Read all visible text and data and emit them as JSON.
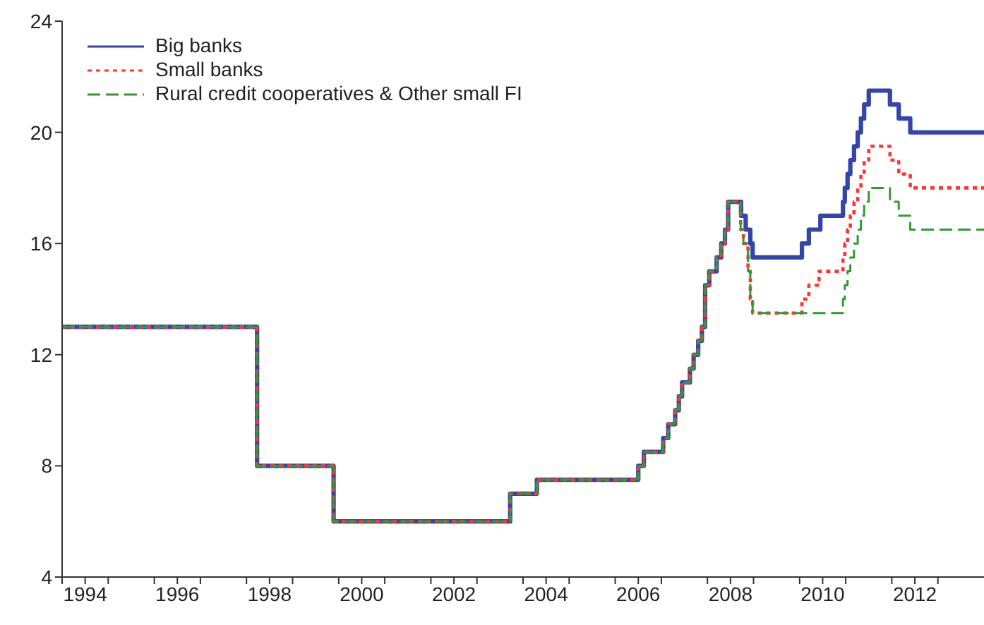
{
  "chart_data": {
    "type": "step",
    "xlim": [
      1994,
      2014
    ],
    "ylim": [
      4,
      24
    ],
    "yticks": [
      4,
      8,
      12,
      16,
      20,
      24
    ],
    "xticks": [
      {
        "value": 1994,
        "label": null
      },
      {
        "value": 1994.5,
        "label": "1994"
      },
      {
        "value": 1995,
        "label": null
      },
      {
        "value": 1996,
        "label": null
      },
      {
        "value": 1996.5,
        "label": "1996"
      },
      {
        "value": 1997,
        "label": null
      },
      {
        "value": 1998,
        "label": null
      },
      {
        "value": 1998.5,
        "label": "1998"
      },
      {
        "value": 1999,
        "label": null
      },
      {
        "value": 2000,
        "label": null
      },
      {
        "value": 2000.5,
        "label": "2000"
      },
      {
        "value": 2001,
        "label": null
      },
      {
        "value": 2002,
        "label": null
      },
      {
        "value": 2002.5,
        "label": "2002"
      },
      {
        "value": 2003,
        "label": null
      },
      {
        "value": 2004,
        "label": null
      },
      {
        "value": 2004.5,
        "label": "2004"
      },
      {
        "value": 2005,
        "label": null
      },
      {
        "value": 2006,
        "label": null
      },
      {
        "value": 2006.5,
        "label": "2006"
      },
      {
        "value": 2007,
        "label": null
      },
      {
        "value": 2008,
        "label": null
      },
      {
        "value": 2008.5,
        "label": "2008"
      },
      {
        "value": 2009,
        "label": null
      },
      {
        "value": 2010,
        "label": null
      },
      {
        "value": 2010.5,
        "label": "2010"
      },
      {
        "value": 2011,
        "label": null
      },
      {
        "value": 2012,
        "label": null
      },
      {
        "value": 2012.5,
        "label": "2012"
      },
      {
        "value": 2013,
        "label": null
      }
    ],
    "grid": false,
    "legend": "top left",
    "marker": "none",
    "series": [
      {
        "name": "Big banks",
        "color": "#3344aa",
        "line_style": "solid",
        "x": [
          1994,
          1998.23,
          1999.89,
          2003.72,
          2004.3,
          2006.5,
          2006.62,
          2007.04,
          2007.15,
          2007.3,
          2007.38,
          2007.45,
          2007.62,
          2007.7,
          2007.8,
          2007.88,
          2007.95,
          2008.04,
          2008.2,
          2008.3,
          2008.38,
          2008.45,
          2008.73,
          2008.83,
          2008.93,
          2008.98,
          2010.05,
          2010.2,
          2010.45,
          2010.94,
          2010.98,
          2011.04,
          2011.1,
          2011.18,
          2011.26,
          2011.33,
          2011.4,
          2011.5,
          2011.96,
          2012.15,
          2012.4,
          2014
        ],
        "values": [
          13,
          8,
          6,
          7,
          7.5,
          8,
          8.5,
          9,
          9.5,
          10,
          10.5,
          11,
          11.5,
          12,
          12.5,
          13,
          14.5,
          15,
          15.5,
          16,
          16.5,
          17.5,
          17,
          16.5,
          16,
          15.5,
          16,
          16.5,
          17,
          17.5,
          18,
          18.5,
          19,
          19.5,
          20,
          20.5,
          21,
          21.5,
          21,
          20.5,
          20,
          20
        ]
      },
      {
        "name": "Small banks",
        "color": "#ff3333",
        "line_style": "dotted",
        "x": [
          1994,
          1998.23,
          1999.89,
          2003.72,
          2004.3,
          2006.5,
          2006.62,
          2007.04,
          2007.15,
          2007.3,
          2007.38,
          2007.45,
          2007.62,
          2007.7,
          2007.8,
          2007.88,
          2007.95,
          2008.04,
          2008.2,
          2008.3,
          2008.38,
          2008.45,
          2008.72,
          2008.78,
          2008.88,
          2008.93,
          2008.98,
          2010.05,
          2010.2,
          2010.42,
          2010.94,
          2010.98,
          2011.04,
          2011.1,
          2011.18,
          2011.26,
          2011.33,
          2011.4,
          2011.5,
          2011.96,
          2012.15,
          2012.4,
          2014
        ],
        "values": [
          13,
          8,
          6,
          7,
          7.5,
          8,
          8.5,
          9,
          9.5,
          10,
          10.5,
          11,
          11.5,
          12,
          12.5,
          13,
          14.5,
          15,
          15.5,
          16,
          16.5,
          17.5,
          16.5,
          16,
          15,
          14,
          13.5,
          14,
          14.5,
          15,
          15.5,
          16,
          16.5,
          17,
          17.5,
          18,
          18.5,
          19,
          19.5,
          19,
          18.5,
          18,
          18
        ]
      },
      {
        "name": "Rural credit cooperatives & Other small FI",
        "color": "#339933",
        "line_style": "dashed",
        "x": [
          1994,
          1998.23,
          1999.89,
          2003.72,
          2004.3,
          2006.5,
          2006.62,
          2007.04,
          2007.15,
          2007.3,
          2007.38,
          2007.45,
          2007.62,
          2007.7,
          2007.8,
          2007.88,
          2007.95,
          2008.04,
          2008.2,
          2008.3,
          2008.38,
          2008.45,
          2008.72,
          2008.78,
          2008.88,
          2008.93,
          2008.98,
          2010.94,
          2010.98,
          2011.04,
          2011.1,
          2011.18,
          2011.26,
          2011.33,
          2011.4,
          2011.5,
          2011.96,
          2012.15,
          2012.4,
          2014
        ],
        "values": [
          13,
          8,
          6,
          7,
          7.5,
          8,
          8.5,
          9,
          9.5,
          10,
          10.5,
          11,
          11.5,
          12,
          12.5,
          13,
          14.5,
          15,
          15.5,
          16,
          16.5,
          17.5,
          16.5,
          16,
          15,
          14,
          13.5,
          14,
          14.5,
          15,
          15.5,
          16,
          16.5,
          17,
          17.5,
          18,
          17.5,
          17,
          16.5,
          16.5
        ]
      }
    ]
  }
}
